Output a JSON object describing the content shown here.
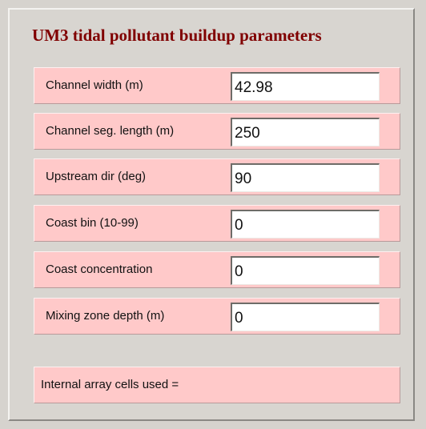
{
  "title": "UM3 tidal pollutant buildup parameters",
  "fields": [
    {
      "label": "Channel width (m)",
      "value": "42.98"
    },
    {
      "label": "Channel seg. length (m)",
      "value": "250"
    },
    {
      "label": "Upstream dir (deg)",
      "value": "90"
    },
    {
      "label": "Coast bin (10-99)",
      "value": "0"
    },
    {
      "label": "Coast concentration",
      "value": "0"
    },
    {
      "label": "Mixing zone depth (m)",
      "value": "0"
    }
  ],
  "footer": "Internal array cells used ="
}
